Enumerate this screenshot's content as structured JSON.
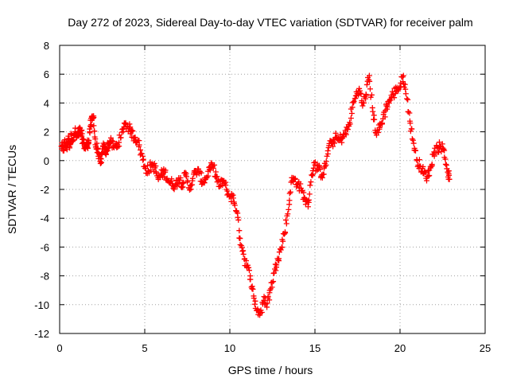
{
  "chart_data": {
    "type": "scatter",
    "title": "Day 272 of 2023, Sidereal Day-to-day VTEC variation (SDTVAR) for receiver palm",
    "xlabel": "GPS time / hours",
    "ylabel": "SDTVAR / TECUs",
    "xlim": [
      0,
      25
    ],
    "ylim": [
      -12,
      8
    ],
    "xticks": [
      0,
      5,
      10,
      15,
      20,
      25
    ],
    "yticks": [
      -12,
      -10,
      -8,
      -6,
      -4,
      -2,
      0,
      2,
      4,
      6,
      8
    ],
    "grid": true,
    "marker": "+",
    "marker_color": "#ff0000",
    "series": [
      {
        "name": "SDTVAR",
        "x": [
          0.1,
          0.2,
          0.3,
          0.4,
          0.5,
          0.6,
          0.7,
          0.8,
          0.9,
          1.0,
          1.1,
          1.2,
          1.3,
          1.4,
          1.5,
          1.6,
          1.7,
          1.8,
          1.9,
          2.0,
          2.1,
          2.2,
          2.3,
          2.4,
          2.5,
          2.6,
          2.7,
          2.8,
          2.9,
          3.0,
          3.2,
          3.4,
          3.6,
          3.8,
          4.0,
          4.2,
          4.4,
          4.6,
          4.8,
          5.0,
          5.2,
          5.4,
          5.6,
          5.8,
          6.0,
          6.2,
          6.4,
          6.6,
          6.8,
          7.0,
          7.2,
          7.4,
          7.6,
          7.8,
          8.0,
          8.2,
          8.4,
          8.6,
          8.8,
          9.0,
          9.2,
          9.4,
          9.6,
          9.8,
          10.0,
          10.2,
          10.4,
          10.6,
          10.8,
          11.0,
          11.2,
          11.4,
          11.6,
          11.8,
          12.0,
          12.2,
          12.4,
          12.6,
          12.8,
          13.0,
          13.2,
          13.4,
          13.6,
          13.8,
          14.0,
          14.2,
          14.4,
          14.6,
          14.8,
          15.0,
          15.2,
          15.4,
          15.6,
          15.8,
          16.0,
          16.2,
          16.4,
          16.6,
          16.8,
          17.0,
          17.2,
          17.4,
          17.6,
          17.8,
          18.0,
          18.2,
          18.4,
          18.6,
          18.8,
          19.0,
          19.2,
          19.4,
          19.6,
          19.8,
          20.0,
          20.2,
          20.4,
          20.6,
          20.8,
          21.0,
          21.2,
          21.4,
          21.6,
          21.8,
          22.0,
          22.2,
          22.4,
          22.6,
          22.8,
          22.9
        ],
        "y": [
          1.0,
          0.7,
          1.3,
          0.9,
          1.5,
          1.1,
          1.8,
          1.4,
          2.0,
          1.6,
          1.8,
          2.1,
          1.7,
          1.2,
          0.9,
          1.0,
          1.3,
          2.4,
          2.8,
          3.0,
          1.1,
          0.8,
          0.3,
          -0.2,
          0.5,
          1.0,
          0.6,
          0.9,
          1.2,
          1.3,
          0.9,
          1.1,
          1.6,
          2.6,
          2.4,
          2.0,
          1.6,
          1.4,
          0.5,
          -0.4,
          -0.7,
          -0.3,
          -0.5,
          -1.3,
          -0.9,
          -0.8,
          -1.4,
          -1.6,
          -1.7,
          -1.2,
          -1.6,
          -1.0,
          -1.9,
          -1.4,
          -0.7,
          -0.9,
          -1.5,
          -1.2,
          -0.6,
          -0.4,
          -1.1,
          -1.8,
          -1.4,
          -2.0,
          -2.5,
          -2.6,
          -3.5,
          -5.4,
          -6.5,
          -7.4,
          -8.0,
          -9.4,
          -10.4,
          -10.6,
          -9.7,
          -9.9,
          -8.9,
          -7.8,
          -6.8,
          -6.2,
          -5.1,
          -3.7,
          -1.5,
          -1.3,
          -1.6,
          -2.1,
          -2.6,
          -3.2,
          -1.0,
          -0.3,
          -0.6,
          -1.0,
          -0.4,
          0.9,
          1.2,
          1.6,
          1.4,
          1.6,
          1.9,
          2.4,
          3.7,
          4.5,
          5.0,
          3.8,
          4.6,
          5.9,
          3.4,
          1.9,
          2.3,
          2.9,
          3.8,
          4.2,
          4.6,
          5.0,
          5.1,
          5.9,
          4.3,
          2.6,
          1.2,
          0.0,
          -0.4,
          -0.9,
          -1.1,
          -0.5,
          0.6,
          0.9,
          1.0,
          0.7,
          -0.8,
          -1.3
        ]
      }
    ]
  }
}
